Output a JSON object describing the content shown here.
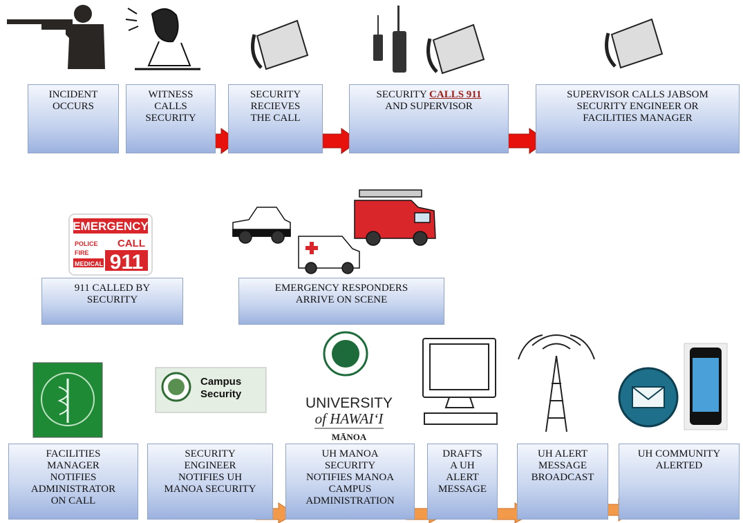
{
  "row1": [
    {
      "lines": [
        "INCIDENT",
        "OCCURS"
      ]
    },
    {
      "lines": [
        "WITNESS",
        "CALLS",
        "SECURITY"
      ]
    },
    {
      "lines": [
        "SECURITY",
        "RECIEVES",
        "THE CALL"
      ]
    },
    {
      "lines": [
        "SECURITY",
        "CALLS 911",
        "AND SUPERVISOR"
      ]
    },
    {
      "lines": [
        "SUPERVISOR CALLS JABSOM",
        "SECURITY ENGINEER OR",
        "FACILITIES MANAGER"
      ]
    }
  ],
  "row2": [
    {
      "lines": [
        "911 CALLED BY",
        "SECURITY"
      ]
    },
    {
      "lines": [
        "EMERGENCY RESPONDERS",
        "ARRIVE ON SCENE"
      ]
    }
  ],
  "row3": [
    {
      "lines": [
        "FACILITIES",
        "MANAGER",
        "NOTIFIES",
        "ADMINISTRATOR",
        "ON CALL"
      ]
    },
    {
      "lines": [
        "SECURITY",
        "ENGINEER",
        "NOTIFIES UH",
        "MANOA SECURITY"
      ]
    },
    {
      "lines": [
        "UH MANOA",
        "SECURITY",
        "NOTIFIES MANOA",
        "CAMPUS",
        "ADMINISTRATION"
      ]
    },
    {
      "lines": [
        "DRAFTS",
        "A UH",
        "ALERT",
        "MESSAGE"
      ]
    },
    {
      "lines": [
        "UH ALERT",
        "MESSAGE",
        "BROADCAST"
      ]
    },
    {
      "lines": [
        "UH COMMUNITY",
        "ALERTED"
      ]
    }
  ],
  "emergency_sign": {
    "title": "EMERGENCY",
    "services": [
      "POLICE",
      "FIRE",
      "MEDICAL"
    ],
    "call": "CALL",
    "number": "911"
  },
  "campus_security": {
    "lines": [
      "Campus",
      "Security"
    ]
  },
  "uh_logo": {
    "lines": [
      "UNIVERSITY",
      "of HAWAIʻI",
      "MĀNOA"
    ]
  }
}
